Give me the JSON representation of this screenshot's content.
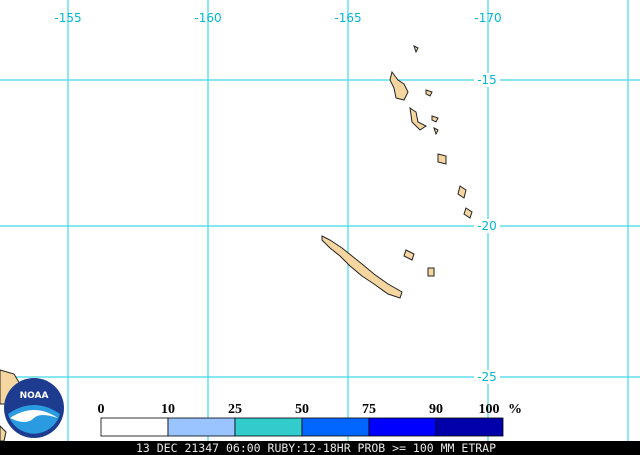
{
  "map": {
    "lon_labels": [
      "-155",
      "-160",
      "-165",
      "-170"
    ],
    "lat_labels": [
      "-15",
      "-20",
      "-25"
    ],
    "logo": "NOAA",
    "legend": {
      "labels": [
        "0",
        "10",
        "25",
        "50",
        "75",
        "90",
        "100"
      ],
      "unit": "%",
      "colors": [
        "#ffffff",
        "#99c4ff",
        "#33cccc",
        "#0066ff",
        "#0000ff",
        "#0000aa"
      ]
    },
    "caption": "13 DEC 21347 06:00 RUBY:12-18HR PROB >= 100 MM ETRAP"
  }
}
